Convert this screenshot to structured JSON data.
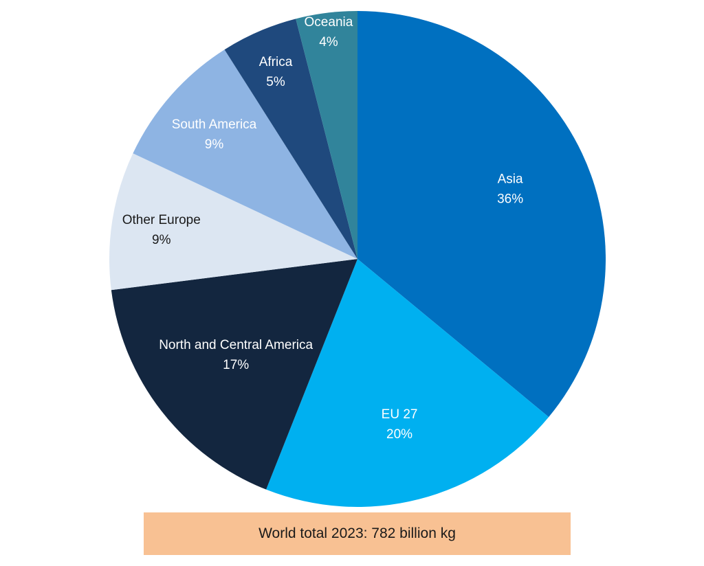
{
  "chart_data": {
    "type": "pie",
    "slices": [
      {
        "label": "Asia",
        "value": 36,
        "value_label": "36%",
        "color": "#0070c0",
        "text_color": "#ffffff"
      },
      {
        "label": "EU 27",
        "value": 20,
        "value_label": "20%",
        "color": "#00b0f0",
        "text_color": "#ffffff"
      },
      {
        "label": "North and Central America",
        "value": 17,
        "value_label": "17%",
        "color": "#13263f",
        "text_color": "#ffffff"
      },
      {
        "label": "Other Europe",
        "value": 9,
        "value_label": "9%",
        "color": "#dce6f2",
        "text_color": "#1a1a1a"
      },
      {
        "label": "South America",
        "value": 9,
        "value_label": "9%",
        "color": "#8eb4e3",
        "text_color": "#ffffff"
      },
      {
        "label": "Africa",
        "value": 5,
        "value_label": "5%",
        "color": "#1f497d",
        "text_color": "#ffffff"
      },
      {
        "label": "Oceania",
        "value": 4,
        "value_label": "4%",
        "color": "#31849b",
        "text_color": "#ffffff"
      }
    ],
    "start": "12 o'clock",
    "direction": "clockwise"
  },
  "footer": {
    "text": "World total 2023: 782 billion kg",
    "background": "#f8c193"
  }
}
